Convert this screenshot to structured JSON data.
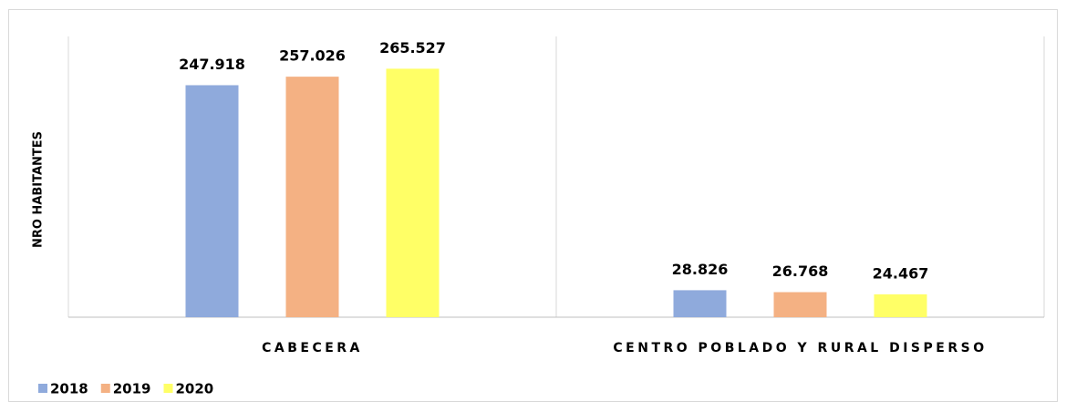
{
  "chart_data": {
    "type": "bar",
    "y_label": "NRO HABITANTES",
    "categories": [
      "CABECERA",
      "CENTRO POBLADO Y RURAL DISPERSO"
    ],
    "series": [
      {
        "name": "2018",
        "color": "#8faadc",
        "values": [
          247918,
          28826
        ],
        "value_labels": [
          "247.918",
          "28.826"
        ]
      },
      {
        "name": "2019",
        "color": "#f4b183",
        "values": [
          257026,
          26768
        ],
        "value_labels": [
          "257.026",
          "26.768"
        ]
      },
      {
        "name": "2020",
        "color": "#ffff66",
        "values": [
          265527,
          24467
        ],
        "value_labels": [
          "265.527",
          "24.467"
        ]
      }
    ],
    "ylim": [
      0,
      300000
    ],
    "legend": "bottom-left"
  }
}
